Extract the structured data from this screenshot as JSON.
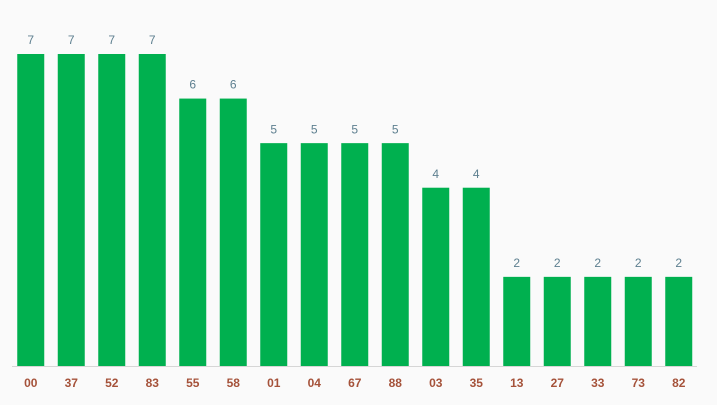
{
  "chart_data": {
    "type": "bar",
    "categories": [
      "00",
      "37",
      "52",
      "83",
      "55",
      "58",
      "01",
      "04",
      "67",
      "88",
      "03",
      "35",
      "13",
      "27",
      "33",
      "73",
      "82"
    ],
    "values": [
      7,
      7,
      7,
      7,
      6,
      6,
      5,
      5,
      5,
      5,
      4,
      4,
      2,
      2,
      2,
      2,
      2
    ],
    "color": "#00b04f"
  }
}
